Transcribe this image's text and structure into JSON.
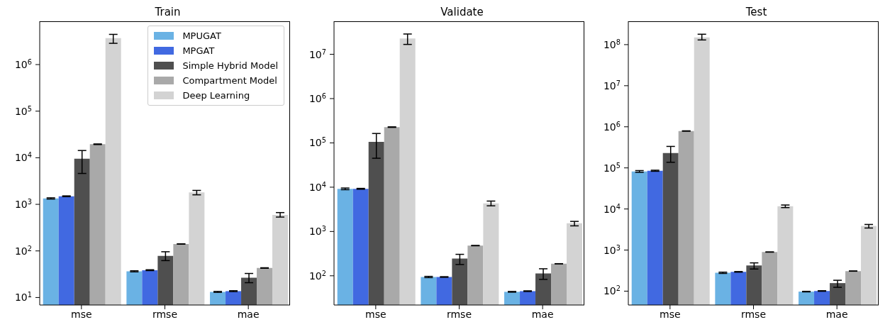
{
  "chart_data": [
    {
      "type": "bar",
      "title": "Train",
      "categories": [
        "mse",
        "rmse",
        "mae"
      ],
      "log": true,
      "legend": "top right",
      "ylim": [
        6.9,
        8500000
      ],
      "yticks": [
        {
          "value": 10,
          "label": "10$^{1}$"
        },
        {
          "value": 100,
          "label": "10$^{2}$"
        },
        {
          "value": 1000,
          "label": "10$^{3}$"
        },
        {
          "value": 10000,
          "label": "10$^{4}$"
        },
        {
          "value": 100000,
          "label": "10$^{5}$"
        },
        {
          "value": 1000000,
          "label": "10$^{6}$"
        }
      ],
      "series": [
        {
          "name": "MPUGAT",
          "color": "#6ab2e4",
          "values": [
            1340,
            36.5,
            13.2
          ],
          "errors": [
            40,
            1,
            0.3
          ]
        },
        {
          "name": "MPGAT",
          "color": "#4169e1",
          "values": [
            1490,
            38.6,
            13.7
          ],
          "errors": [
            30,
            0.8,
            0.3
          ]
        },
        {
          "name": "Simple Hybrid Model",
          "color": "#4f4f4f",
          "values": [
            9500,
            78,
            26.6
          ],
          "errors": [
            [
              4600,
              14300
            ],
            [
              62,
              96
            ],
            [
              20.8,
              32.8
            ]
          ]
        },
        {
          "name": "Compartment Model",
          "color": "#a9a9a9",
          "values": [
            19500,
            141,
            43
          ],
          "errors": [
            300,
            1,
            0.5
          ]
        },
        {
          "name": "Deep Learning",
          "color": "#d3d3d3",
          "values": [
            3700000,
            1810,
            591
          ],
          "errors": [
            [
              2860000,
              4450000
            ],
            [
              1600,
              1990
            ],
            [
              533,
              665
            ]
          ]
        }
      ]
    },
    {
      "type": "bar",
      "title": "Validate",
      "categories": [
        "mse",
        "rmse",
        "mae"
      ],
      "log": true,
      "ylim": [
        21.9,
        55600000
      ],
      "yticks": [
        {
          "value": 100,
          "label": "10$^{2}$"
        },
        {
          "value": 1000,
          "label": "10$^{3}$"
        },
        {
          "value": 10000,
          "label": "10$^{4}$"
        },
        {
          "value": 100000,
          "label": "10$^{5}$"
        },
        {
          "value": 1000000,
          "label": "10$^{6}$"
        },
        {
          "value": 10000000,
          "label": "10$^{7}$"
        }
      ],
      "series": [
        {
          "color": "#6ab2e4",
          "values": [
            9180,
            94,
            43.5
          ],
          "errors": [
            400,
            3,
            0.8
          ]
        },
        {
          "color": "#4169e1",
          "values": [
            9200,
            94,
            45
          ],
          "errors": [
            200,
            1.5,
            0.8
          ]
        },
        {
          "color": "#4f4f4f",
          "values": [
            105000,
            244,
            113
          ],
          "errors": [
            [
              45000,
              163000
            ],
            [
              180,
              305
            ],
            [
              83,
              144
            ]
          ]
        },
        {
          "color": "#a9a9a9",
          "values": [
            227000,
            480,
            187
          ],
          "errors": [
            3000,
            4,
            1
          ]
        },
        {
          "color": "#d3d3d3",
          "values": [
            22700000,
            4300,
            1530
          ],
          "errors": [
            [
              16700000,
              28700000
            ],
            [
              3800,
              4860
            ],
            [
              1340,
              1690
            ]
          ]
        }
      ]
    },
    {
      "type": "bar",
      "title": "Test",
      "categories": [
        "mse",
        "rmse",
        "mae"
      ],
      "log": true,
      "ylim": [
        46,
        370000000
      ],
      "yticks": [
        {
          "value": 100,
          "label": "10$^{2}$"
        },
        {
          "value": 1000,
          "label": "10$^{3}$"
        },
        {
          "value": 10000,
          "label": "10$^{4}$"
        },
        {
          "value": 100000,
          "label": "10$^{5}$"
        },
        {
          "value": 1000000,
          "label": "10$^{6}$"
        },
        {
          "value": 10000000,
          "label": "10$^{7}$"
        },
        {
          "value": 100000000,
          "label": "10$^{8}$"
        }
      ],
      "series": [
        {
          "color": "#6ab2e4",
          "values": [
            82000,
            280,
            97.5
          ],
          "errors": [
            4000,
            10,
            1.5
          ]
        },
        {
          "color": "#4169e1",
          "values": [
            85300,
            295,
            101
          ],
          "errors": [
            2500,
            5,
            1.5
          ]
        },
        {
          "color": "#4f4f4f",
          "values": [
            230000,
            422,
            157
          ],
          "errors": [
            [
              137000,
              333000
            ],
            [
              346,
              488
            ],
            [
              124,
              184
            ]
          ]
        },
        {
          "color": "#a9a9a9",
          "values": [
            790000,
            895,
            308
          ],
          "errors": [
            8000,
            6,
            2
          ]
        },
        {
          "color": "#d3d3d3",
          "values": [
            150000000,
            11700,
            3880
          ],
          "errors": [
            [
              130000000,
              179000000
            ],
            [
              10800,
              12500
            ],
            [
              3440,
              4200
            ]
          ]
        }
      ]
    }
  ]
}
